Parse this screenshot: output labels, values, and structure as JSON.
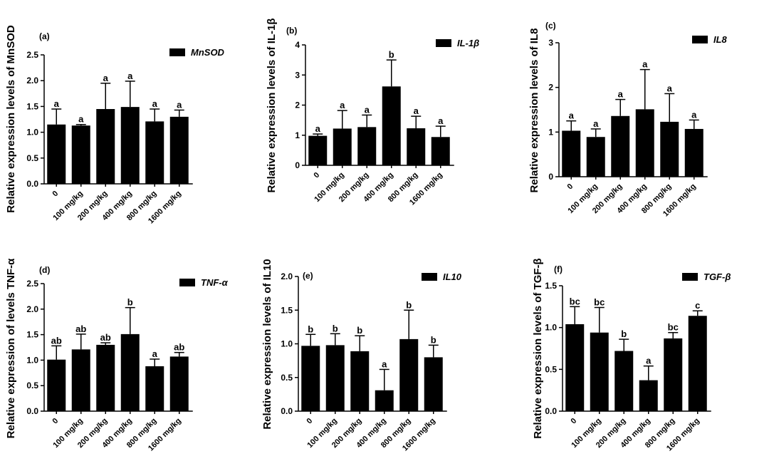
{
  "chart_data": [
    {
      "type": "bar",
      "panel": "(a)",
      "legend": "MnSOD",
      "ylabel": "Relative expression levels of MnSOD",
      "categories": [
        "0",
        "100 mg/kg",
        "200 mg/kg",
        "400 mg/kg",
        "800 mg/kg",
        "1600 mg/kg"
      ],
      "values": [
        1.15,
        1.13,
        1.45,
        1.49,
        1.21,
        1.3
      ],
      "errors": [
        0.3,
        0.02,
        0.5,
        0.5,
        0.24,
        0.13
      ],
      "significance": [
        "a",
        "a",
        "a",
        "a",
        "a",
        "a"
      ],
      "ylim": [
        0,
        2.5
      ],
      "yticks": [
        "0.0",
        "0.5",
        "1.0",
        "1.5",
        "2.0",
        "2.5"
      ]
    },
    {
      "type": "bar",
      "panel": "(b)",
      "legend": "IL-1β",
      "ylabel": "Relative expression levels of IL-1β",
      "categories": [
        "0",
        "100 mg/kg",
        "200 mg/kg",
        "400 mg/kg",
        "800 mg/kg",
        "1600 mg/kg"
      ],
      "values": [
        0.98,
        1.22,
        1.27,
        2.62,
        1.23,
        0.94
      ],
      "errors": [
        0.06,
        0.6,
        0.4,
        0.88,
        0.4,
        0.36
      ],
      "significance": [
        "a",
        "a",
        "a",
        "b",
        "a",
        "a"
      ],
      "ylim": [
        0,
        4
      ],
      "yticks": [
        "0",
        "1",
        "2",
        "3",
        "4"
      ]
    },
    {
      "type": "bar",
      "panel": "(c)",
      "legend": "IL8",
      "ylabel": "Relative expression levels of IL8",
      "categories": [
        "0",
        "100 mg/kg",
        "200 mg/kg",
        "400 mg/kg",
        "800 mg/kg",
        "1600 mg/kg"
      ],
      "values": [
        1.03,
        0.89,
        1.36,
        1.51,
        1.23,
        1.07
      ],
      "errors": [
        0.22,
        0.18,
        0.37,
        0.89,
        0.63,
        0.2
      ],
      "significance": [
        "a",
        "a",
        "a",
        "a",
        "a",
        "a"
      ],
      "ylim": [
        0,
        3
      ],
      "yticks": [
        "0",
        "1",
        "2",
        "3"
      ]
    },
    {
      "type": "bar",
      "panel": "(d)",
      "legend": "TNF-α",
      "ylabel": "Relative expression of levels TNF-α",
      "categories": [
        "0",
        "100 mg/kg",
        "200 mg/kg",
        "400 mg/kg",
        "800 mg/kg",
        "1600 mg/kg"
      ],
      "values": [
        1.01,
        1.21,
        1.3,
        1.51,
        0.88,
        1.07
      ],
      "errors": [
        0.27,
        0.3,
        0.04,
        0.52,
        0.14,
        0.08
      ],
      "significance": [
        "ab",
        "ab",
        "ab",
        "b",
        "a",
        "ab"
      ],
      "ylim": [
        0,
        2.5
      ],
      "yticks": [
        "0.0",
        "0.5",
        "1.0",
        "1.5",
        "2.0",
        "2.5"
      ]
    },
    {
      "type": "bar",
      "panel": "(e)",
      "legend": "IL10",
      "ylabel": "Relative expression levels of IL10",
      "categories": [
        "0",
        "100 mg/kg",
        "200 mg/kg",
        "400 mg/kg",
        "800 mg/kg",
        "1600 mg/kg"
      ],
      "values": [
        0.97,
        0.98,
        0.89,
        0.31,
        1.07,
        0.8
      ],
      "errors": [
        0.17,
        0.17,
        0.23,
        0.31,
        0.43,
        0.18
      ],
      "significance": [
        "b",
        "b",
        "b",
        "a",
        "b",
        "b"
      ],
      "ylim": [
        0,
        2.0
      ],
      "yticks": [
        "0.0",
        "0.5",
        "1.0",
        "1.5",
        "2.0"
      ]
    },
    {
      "type": "bar",
      "panel": "(f)",
      "legend": "TGF-β",
      "ylabel": "Relative expression levels of TGF-β",
      "categories": [
        "0",
        "100 mg/kg",
        "200 mg/kg",
        "400 mg/kg",
        "800 mg/kg",
        "1600 mg/kg"
      ],
      "values": [
        1.04,
        0.94,
        0.72,
        0.37,
        0.87,
        1.14
      ],
      "errors": [
        0.21,
        0.3,
        0.14,
        0.17,
        0.07,
        0.06
      ],
      "significance": [
        "bc",
        "bc",
        "b",
        "a",
        "bc",
        "c"
      ],
      "ylim": [
        0,
        1.5
      ],
      "yticks": [
        "0.0",
        "0.5",
        "1.0",
        "1.5"
      ]
    }
  ]
}
